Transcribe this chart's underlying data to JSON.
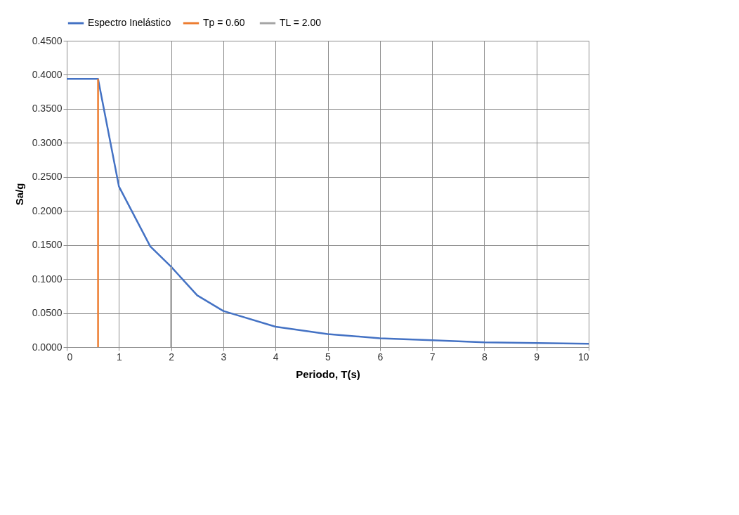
{
  "chart_data": {
    "type": "line",
    "xlabel": "Periodo,  T(s)",
    "ylabel": "Sa/g",
    "xlim": [
      0,
      10
    ],
    "xticks": [
      0,
      1,
      2,
      3,
      4,
      5,
      6,
      7,
      8,
      9,
      10
    ],
    "ylim": [
      0,
      0.45
    ],
    "yticks": [
      {
        "value": 0,
        "label": "0.0000"
      },
      {
        "value": 0.05,
        "label": "0.0500"
      },
      {
        "value": 0.1,
        "label": "0.1000"
      },
      {
        "value": 0.15,
        "label": "0.1500"
      },
      {
        "value": 0.2,
        "label": "0.2000"
      },
      {
        "value": 0.25,
        "label": "0.2500"
      },
      {
        "value": 0.3,
        "label": "0.3000"
      },
      {
        "value": 0.35,
        "label": "0.3500"
      },
      {
        "value": 0.4,
        "label": "0.4000"
      },
      {
        "value": 0.45,
        "label": "0.4500"
      }
    ],
    "grid": true,
    "legend": "top",
    "marker": "none",
    "line_style": "solid",
    "series": [
      {
        "name": "Espectro Inelástico",
        "color": "#4472c4",
        "x": [
          0,
          0.6,
          1,
          1.6,
          2,
          2.5,
          3,
          4,
          5,
          6,
          7,
          8,
          9,
          10
        ],
        "values": [
          0.394,
          0.394,
          0.236,
          0.148,
          0.118,
          0.076,
          0.053,
          0.03,
          0.019,
          0.013,
          0.01,
          0.007,
          0.006,
          0.005
        ]
      },
      {
        "name": "Tp =  0.60",
        "color": "#ed7d31",
        "x": [
          0.6,
          0.6
        ],
        "values": [
          0,
          0.394
        ]
      },
      {
        "name": "TL = 2.00",
        "color": "#a5a5a5",
        "x": [
          2,
          2
        ],
        "values": [
          0,
          0.118
        ]
      }
    ]
  }
}
